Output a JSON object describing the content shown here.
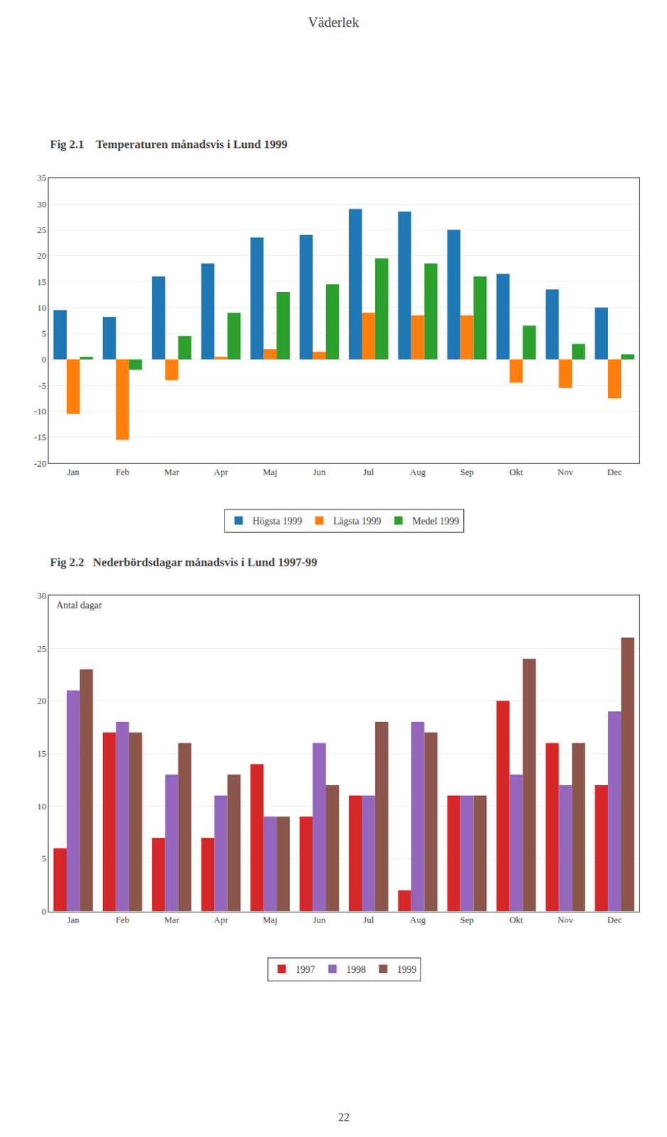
{
  "title": "Väderlek",
  "annotations": [
    "22"
  ],
  "chart_data": [
    {
      "type": "bar",
      "title": "Fig 2.1    Temperaturen månadsvis i Lund 1999",
      "categories": [
        "Jan",
        "Feb",
        "Mar",
        "Apr",
        "Maj",
        "Jun",
        "Jul",
        "Aug",
        "Sep",
        "Okt",
        "Nov",
        "Dec"
      ],
      "series": [
        {
          "name": "Högsta 1999",
          "values": [
            9.5,
            8.2,
            16.0,
            18.5,
            23.5,
            24.0,
            29.0,
            28.5,
            25.0,
            16.5,
            13.5,
            10.0
          ]
        },
        {
          "name": "Lägsta 1999",
          "values": [
            -10.5,
            -15.5,
            -4.0,
            0.5,
            2.0,
            1.5,
            9.0,
            8.5,
            8.5,
            -4.5,
            -5.5,
            -7.5
          ]
        },
        {
          "name": "Medel 1999",
          "values": [
            0.5,
            -2.0,
            4.5,
            9.0,
            13.0,
            14.5,
            19.5,
            18.5,
            16.0,
            6.5,
            3.0,
            1.0
          ]
        }
      ],
      "ylim": [
        -20,
        35
      ],
      "yticks": [
        -20,
        -15,
        -10,
        -5,
        0,
        5,
        10,
        15,
        20,
        25,
        30,
        35
      ],
      "grid": true,
      "legend": "bottom"
    },
    {
      "type": "bar",
      "title": "Fig 2.2   Nederbördsdagar månadsvis i Lund 1997-99",
      "annotations": [
        "Antal dagar"
      ],
      "categories": [
        "Jan",
        "Feb",
        "Mar",
        "Apr",
        "Maj",
        "Jun",
        "Jul",
        "Aug",
        "Sep",
        "Okt",
        "Nov",
        "Dec"
      ],
      "series": [
        {
          "name": "1997",
          "values": [
            6,
            17,
            7,
            7,
            14,
            9,
            11,
            2,
            11,
            20,
            16,
            12
          ]
        },
        {
          "name": "1998",
          "values": [
            21,
            18,
            13,
            11,
            9,
            16,
            11,
            18,
            11,
            13,
            12,
            19
          ]
        },
        {
          "name": "1999",
          "values": [
            23,
            17,
            16,
            13,
            9,
            12,
            18,
            17,
            11,
            24,
            16,
            26
          ]
        }
      ],
      "ylim": [
        0,
        30
      ],
      "yticks": [
        0,
        5,
        10,
        15,
        20,
        25,
        30
      ],
      "grid": true,
      "legend": "bottom"
    }
  ]
}
